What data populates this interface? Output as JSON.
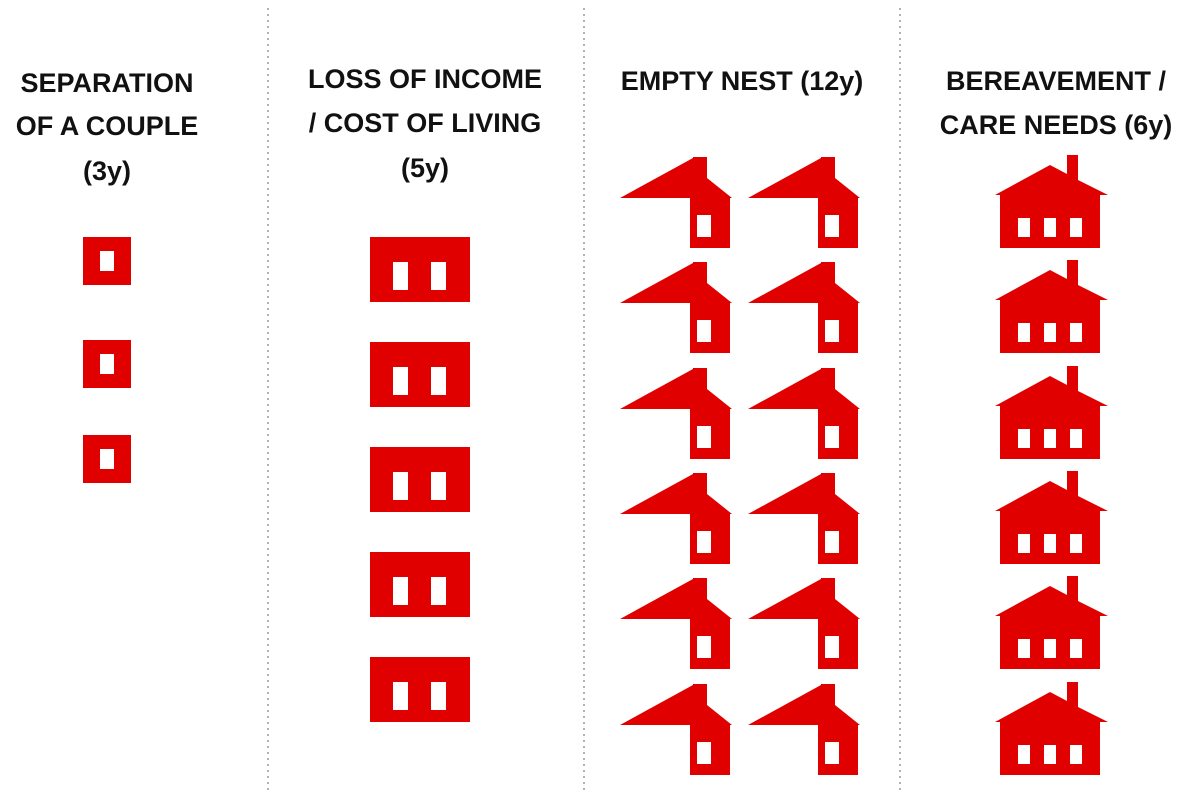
{
  "columns": [
    {
      "title_lines": [
        "SEPARATION",
        "OF A COUPLE",
        "(3y)"
      ]
    },
    {
      "title_lines": [
        "LOSS OF INCOME",
        "/ COST OF LIVING",
        "(5y)"
      ]
    },
    {
      "title_lines": [
        "EMPTY NEST (12y)"
      ]
    },
    {
      "title_lines": [
        "BEREAVEMENT /",
        "CARE NEEDS (6y)"
      ]
    }
  ]
}
